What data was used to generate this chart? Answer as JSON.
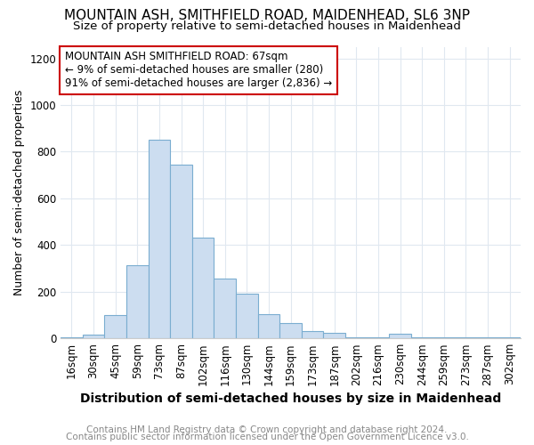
{
  "title1": "MOUNTAIN ASH, SMITHFIELD ROAD, MAIDENHEAD, SL6 3NP",
  "title2": "Size of property relative to semi-detached houses in Maidenhead",
  "xlabel": "Distribution of semi-detached houses by size in Maidenhead",
  "ylabel": "Number of semi-detached properties",
  "footnote1": "Contains HM Land Registry data © Crown copyright and database right 2024.",
  "footnote2": "Contains public sector information licensed under the Open Government Licence v3.0.",
  "categories": [
    "16sqm",
    "30sqm",
    "45sqm",
    "59sqm",
    "73sqm",
    "87sqm",
    "102sqm",
    "116sqm",
    "130sqm",
    "144sqm",
    "159sqm",
    "173sqm",
    "187sqm",
    "202sqm",
    "216sqm",
    "230sqm",
    "244sqm",
    "259sqm",
    "273sqm",
    "287sqm",
    "302sqm"
  ],
  "values": [
    5,
    15,
    100,
    315,
    850,
    745,
    430,
    255,
    190,
    105,
    65,
    30,
    22,
    5,
    3,
    20,
    3,
    3,
    3,
    5,
    3
  ],
  "bar_color": "#ccddf0",
  "bar_edge_color": "#7aadd0",
  "annotation_text": "MOUNTAIN ASH SMITHFIELD ROAD: 67sqm\n← 9% of semi-detached houses are smaller (280)\n91% of semi-detached houses are larger (2,836) →",
  "annotation_box_color": "#ffffff",
  "annotation_box_edge_color": "#cc0000",
  "ylim": [
    0,
    1250
  ],
  "yticks": [
    0,
    200,
    400,
    600,
    800,
    1000,
    1200
  ],
  "bg_color": "#ffffff",
  "grid_color": "#e0e8f0",
  "title1_fontsize": 11,
  "title2_fontsize": 9.5,
  "xlabel_fontsize": 10,
  "ylabel_fontsize": 9,
  "tick_fontsize": 8.5,
  "annotation_fontsize": 8.5,
  "footnote_fontsize": 7.5
}
